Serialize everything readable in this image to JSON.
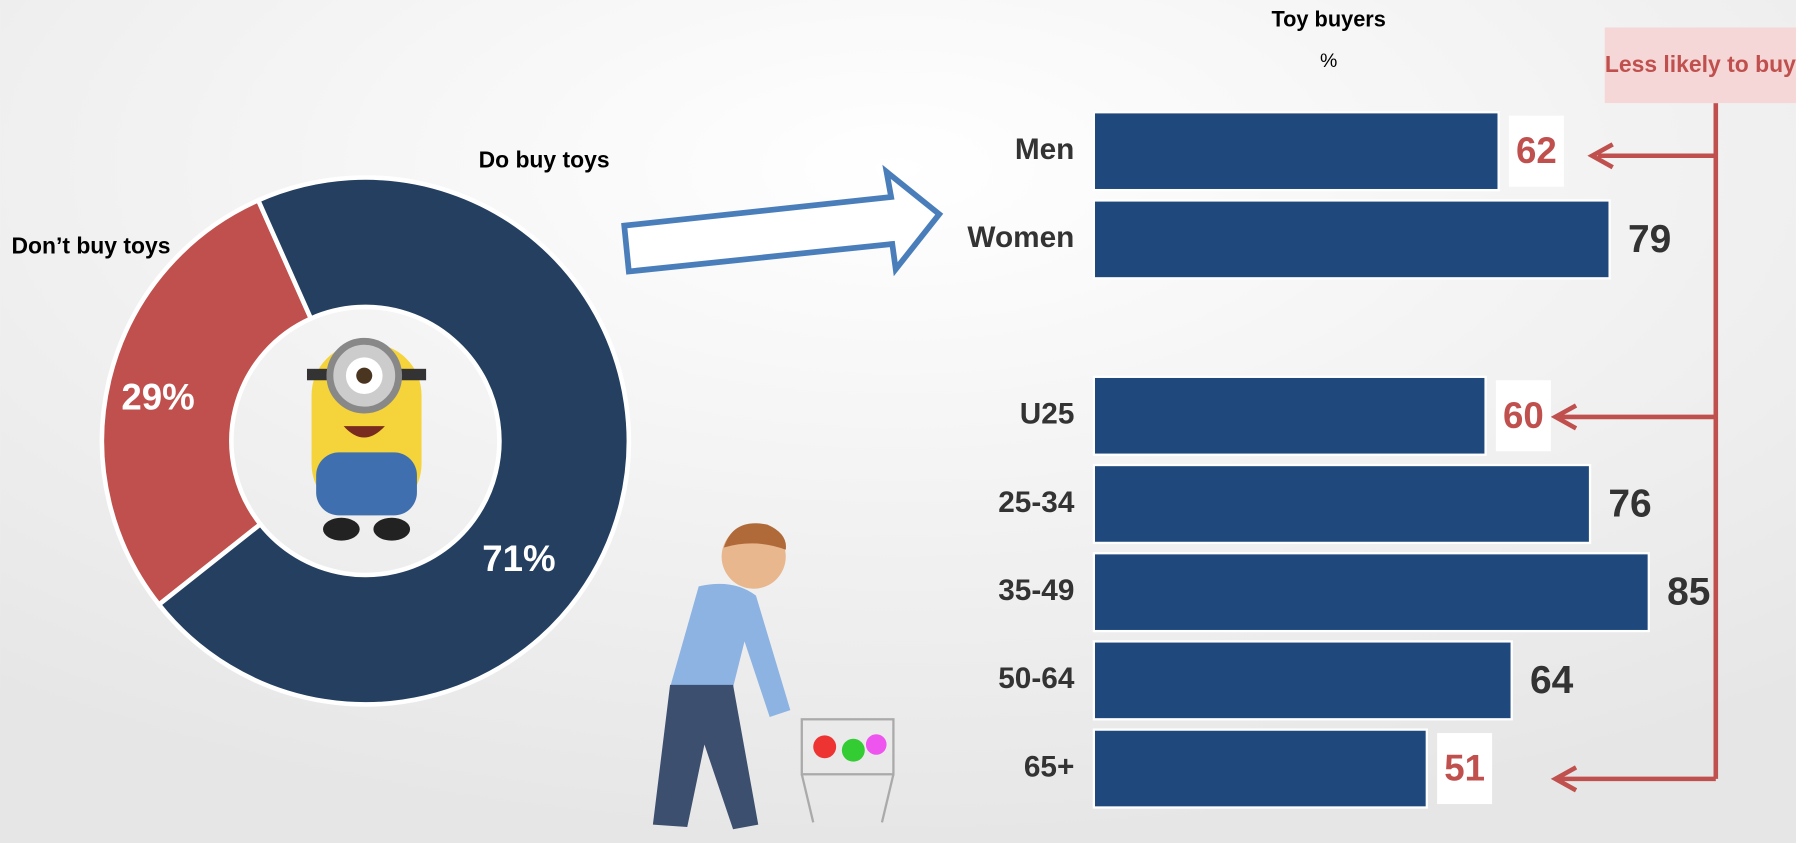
{
  "chart_data": [
    {
      "type": "donut",
      "categories": [
        "Don’t buy toys",
        "Do buy toys"
      ],
      "values": [
        29,
        71
      ],
      "value_labels": [
        "29%",
        "71%"
      ],
      "colors": [
        "#c0504d",
        "#243f60"
      ]
    },
    {
      "type": "hbar",
      "title": "Toy buyers",
      "subtitle": "%",
      "categories": [
        "Men",
        "Women",
        null,
        "U25",
        "25-34",
        "35-49",
        "50-64",
        "65+"
      ],
      "values": [
        62,
        79,
        null,
        60,
        76,
        85,
        64,
        51
      ],
      "color": "#1f497d",
      "label_colors": [
        "#c0504d",
        "#333333",
        null,
        "#c0504d",
        "#333333",
        "#333333",
        "#333333",
        "#c0504d"
      ],
      "xlim": [
        0,
        100
      ],
      "annotation": "Less likely to buy"
    }
  ]
}
